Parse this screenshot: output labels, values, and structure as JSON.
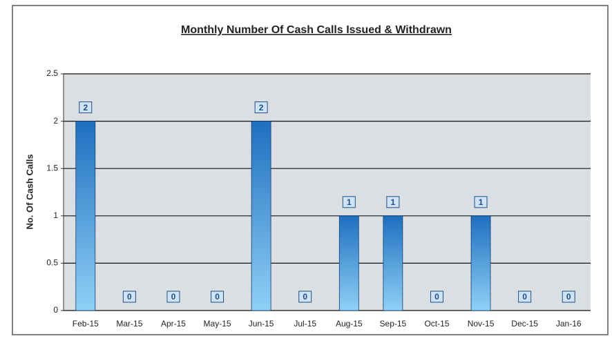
{
  "chart_data": {
    "type": "bar",
    "title": "Monthly Number Of Cash Calls Issued & Withdrawn",
    "y_label": "No. Of Cash Calls",
    "categories": [
      "Feb-15",
      "Mar-15",
      "Apr-15",
      "May-15",
      "Jun-15",
      "Jul-15",
      "Aug-15",
      "Sep-15",
      "Oct-15",
      "Nov-15",
      "Dec-15",
      "Jan-16"
    ],
    "values": [
      2,
      0,
      0,
      0,
      2,
      0,
      1,
      1,
      0,
      1,
      0,
      0
    ],
    "color": "#1f6fc0",
    "ylim": [
      0,
      2.5
    ],
    "yticks": [
      0,
      0.5,
      1,
      1.5,
      2,
      2.5
    ],
    "grid": true
  }
}
